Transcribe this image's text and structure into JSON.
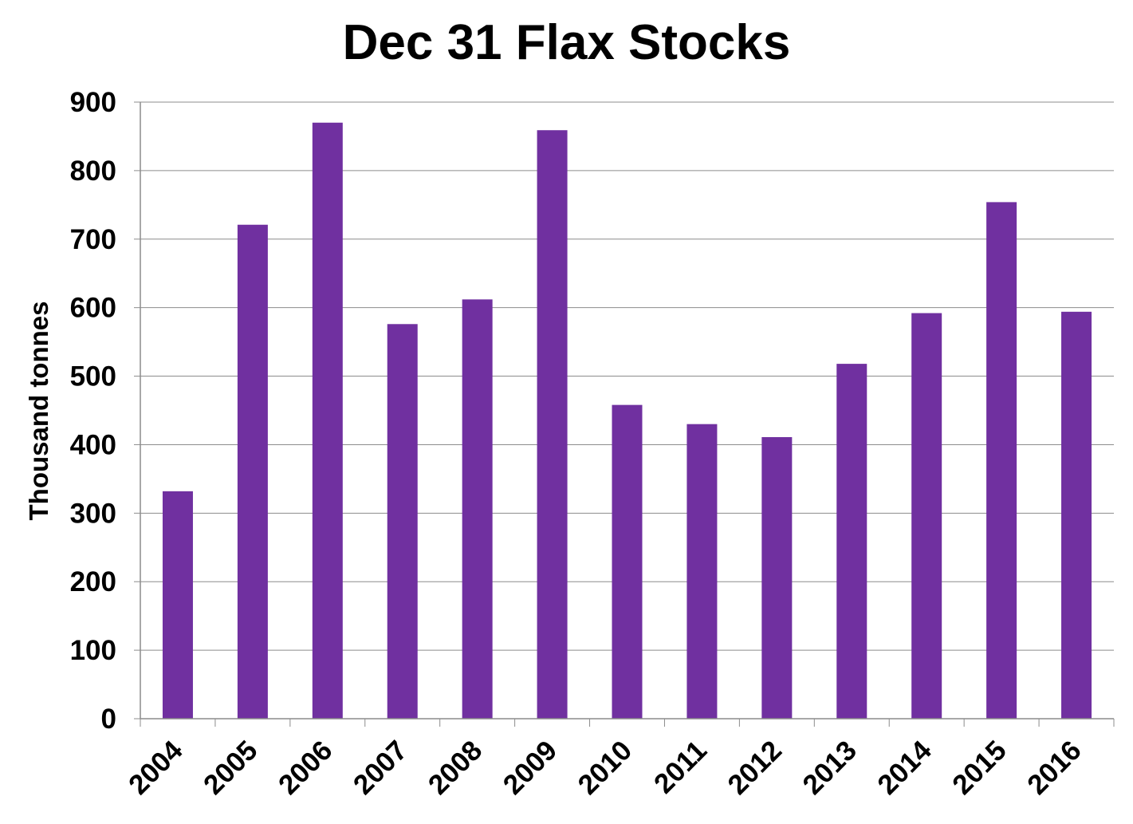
{
  "chart_data": {
    "type": "bar",
    "title": "Dec 31 Flax Stocks",
    "xlabel": "",
    "ylabel": "Thousand tonnes",
    "categories": [
      "2004",
      "2005",
      "2006",
      "2007",
      "2008",
      "2009",
      "2010",
      "2011",
      "2012",
      "2013",
      "2014",
      "2015",
      "2016"
    ],
    "values": [
      332,
      721,
      870,
      576,
      612,
      859,
      458,
      430,
      411,
      518,
      592,
      754,
      594
    ],
    "ylim": [
      0,
      900
    ],
    "yticks": [
      "0",
      "100",
      "200",
      "300",
      "400",
      "500",
      "600",
      "700",
      "800",
      "900"
    ],
    "grid": true,
    "legend": "none",
    "colors": {
      "bar": "#7030A0",
      "gridline": "#8c8c8c",
      "axis": "#8c8c8c"
    }
  }
}
